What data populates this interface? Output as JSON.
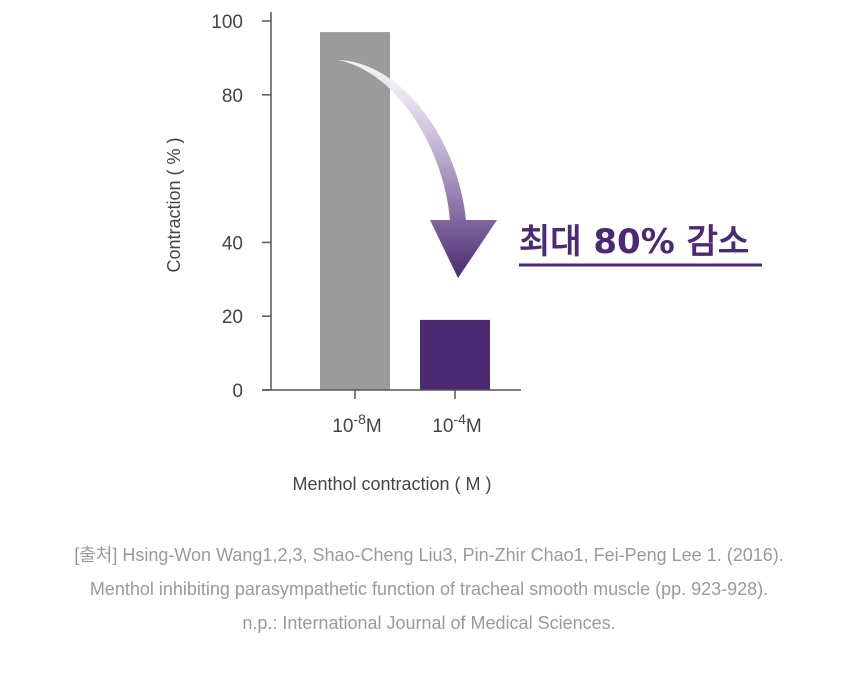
{
  "chart_data": {
    "type": "bar",
    "categories": [
      {
        "base": "10",
        "exp": "-8",
        "unit": "M"
      },
      {
        "base": "10",
        "exp": "-4",
        "unit": "M"
      }
    ],
    "values": [
      97,
      19
    ],
    "bar_colors": [
      "#9b9b9b",
      "#4b2a73"
    ],
    "xlabel": "Menthol contraction ( M )",
    "ylabel": "Contraction ( % )",
    "yticks": [
      0,
      20,
      40,
      80,
      100
    ],
    "ylim": [
      0,
      100
    ],
    "annotation": {
      "text": "최대 80% 감소",
      "color": "#4b2a73",
      "arrow": "curved arrow from first bar down to second bar"
    },
    "grid": false
  },
  "citation": {
    "line1": "[출처] Hsing-Won Wang1,2,3, Shao-Cheng Liu3, Pin-Zhir Chao1, Fei-Peng Lee 1. (2016).",
    "line2": "Menthol inhibiting parasympathetic function of tracheal smooth muscle (pp. 923-928).",
    "line3": "n.p.: International Journal of Medical Sciences."
  },
  "colors": {
    "axis": "#555555",
    "accent": "#4b2a73",
    "citation_text": "#9a9a9a"
  }
}
